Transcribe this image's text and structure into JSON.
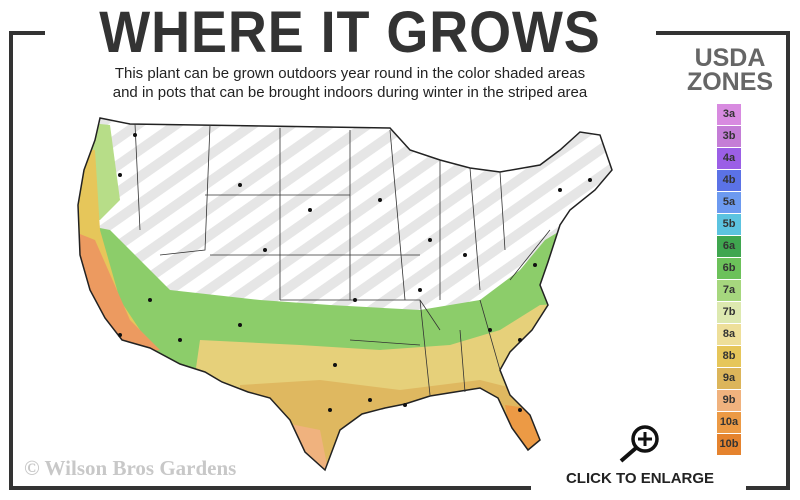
{
  "header": {
    "title": "WHERE IT GROWS",
    "subtitle_line1": "This plant can be grown outdoors year round in the color shaded areas",
    "subtitle_line2": "and in pots that can be brought indoors during winter in the striped area"
  },
  "legend": {
    "title_line1": "USDA",
    "title_line2": "ZONES",
    "zones": [
      {
        "label": "3a",
        "color": "#d88be0"
      },
      {
        "label": "3b",
        "color": "#c47dd6"
      },
      {
        "label": "4a",
        "color": "#9b5fe6"
      },
      {
        "label": "4b",
        "color": "#5b72e6"
      },
      {
        "label": "5a",
        "color": "#6d9af0"
      },
      {
        "label": "5b",
        "color": "#5cc3e0"
      },
      {
        "label": "6a",
        "color": "#3fa64f"
      },
      {
        "label": "6b",
        "color": "#6cc15a"
      },
      {
        "label": "7a",
        "color": "#a6d77e"
      },
      {
        "label": "7b",
        "color": "#dde9b0"
      },
      {
        "label": "8a",
        "color": "#eedf9a"
      },
      {
        "label": "8b",
        "color": "#e6c65a"
      },
      {
        "label": "9a",
        "color": "#dcb55a"
      },
      {
        "label": "9b",
        "color": "#f0b27e"
      },
      {
        "label": "10a",
        "color": "#ec9a45"
      },
      {
        "label": "10b",
        "color": "#e5832e"
      }
    ]
  },
  "map": {
    "striped_area": "containers indoors in winter",
    "shaded_area": "outdoors year round"
  },
  "footer": {
    "copyright": "© Wilson Bros Gardens",
    "enlarge_label": "CLICK TO ENLARGE",
    "enlarge_icon": "zoom-in-magnifier-icon"
  }
}
